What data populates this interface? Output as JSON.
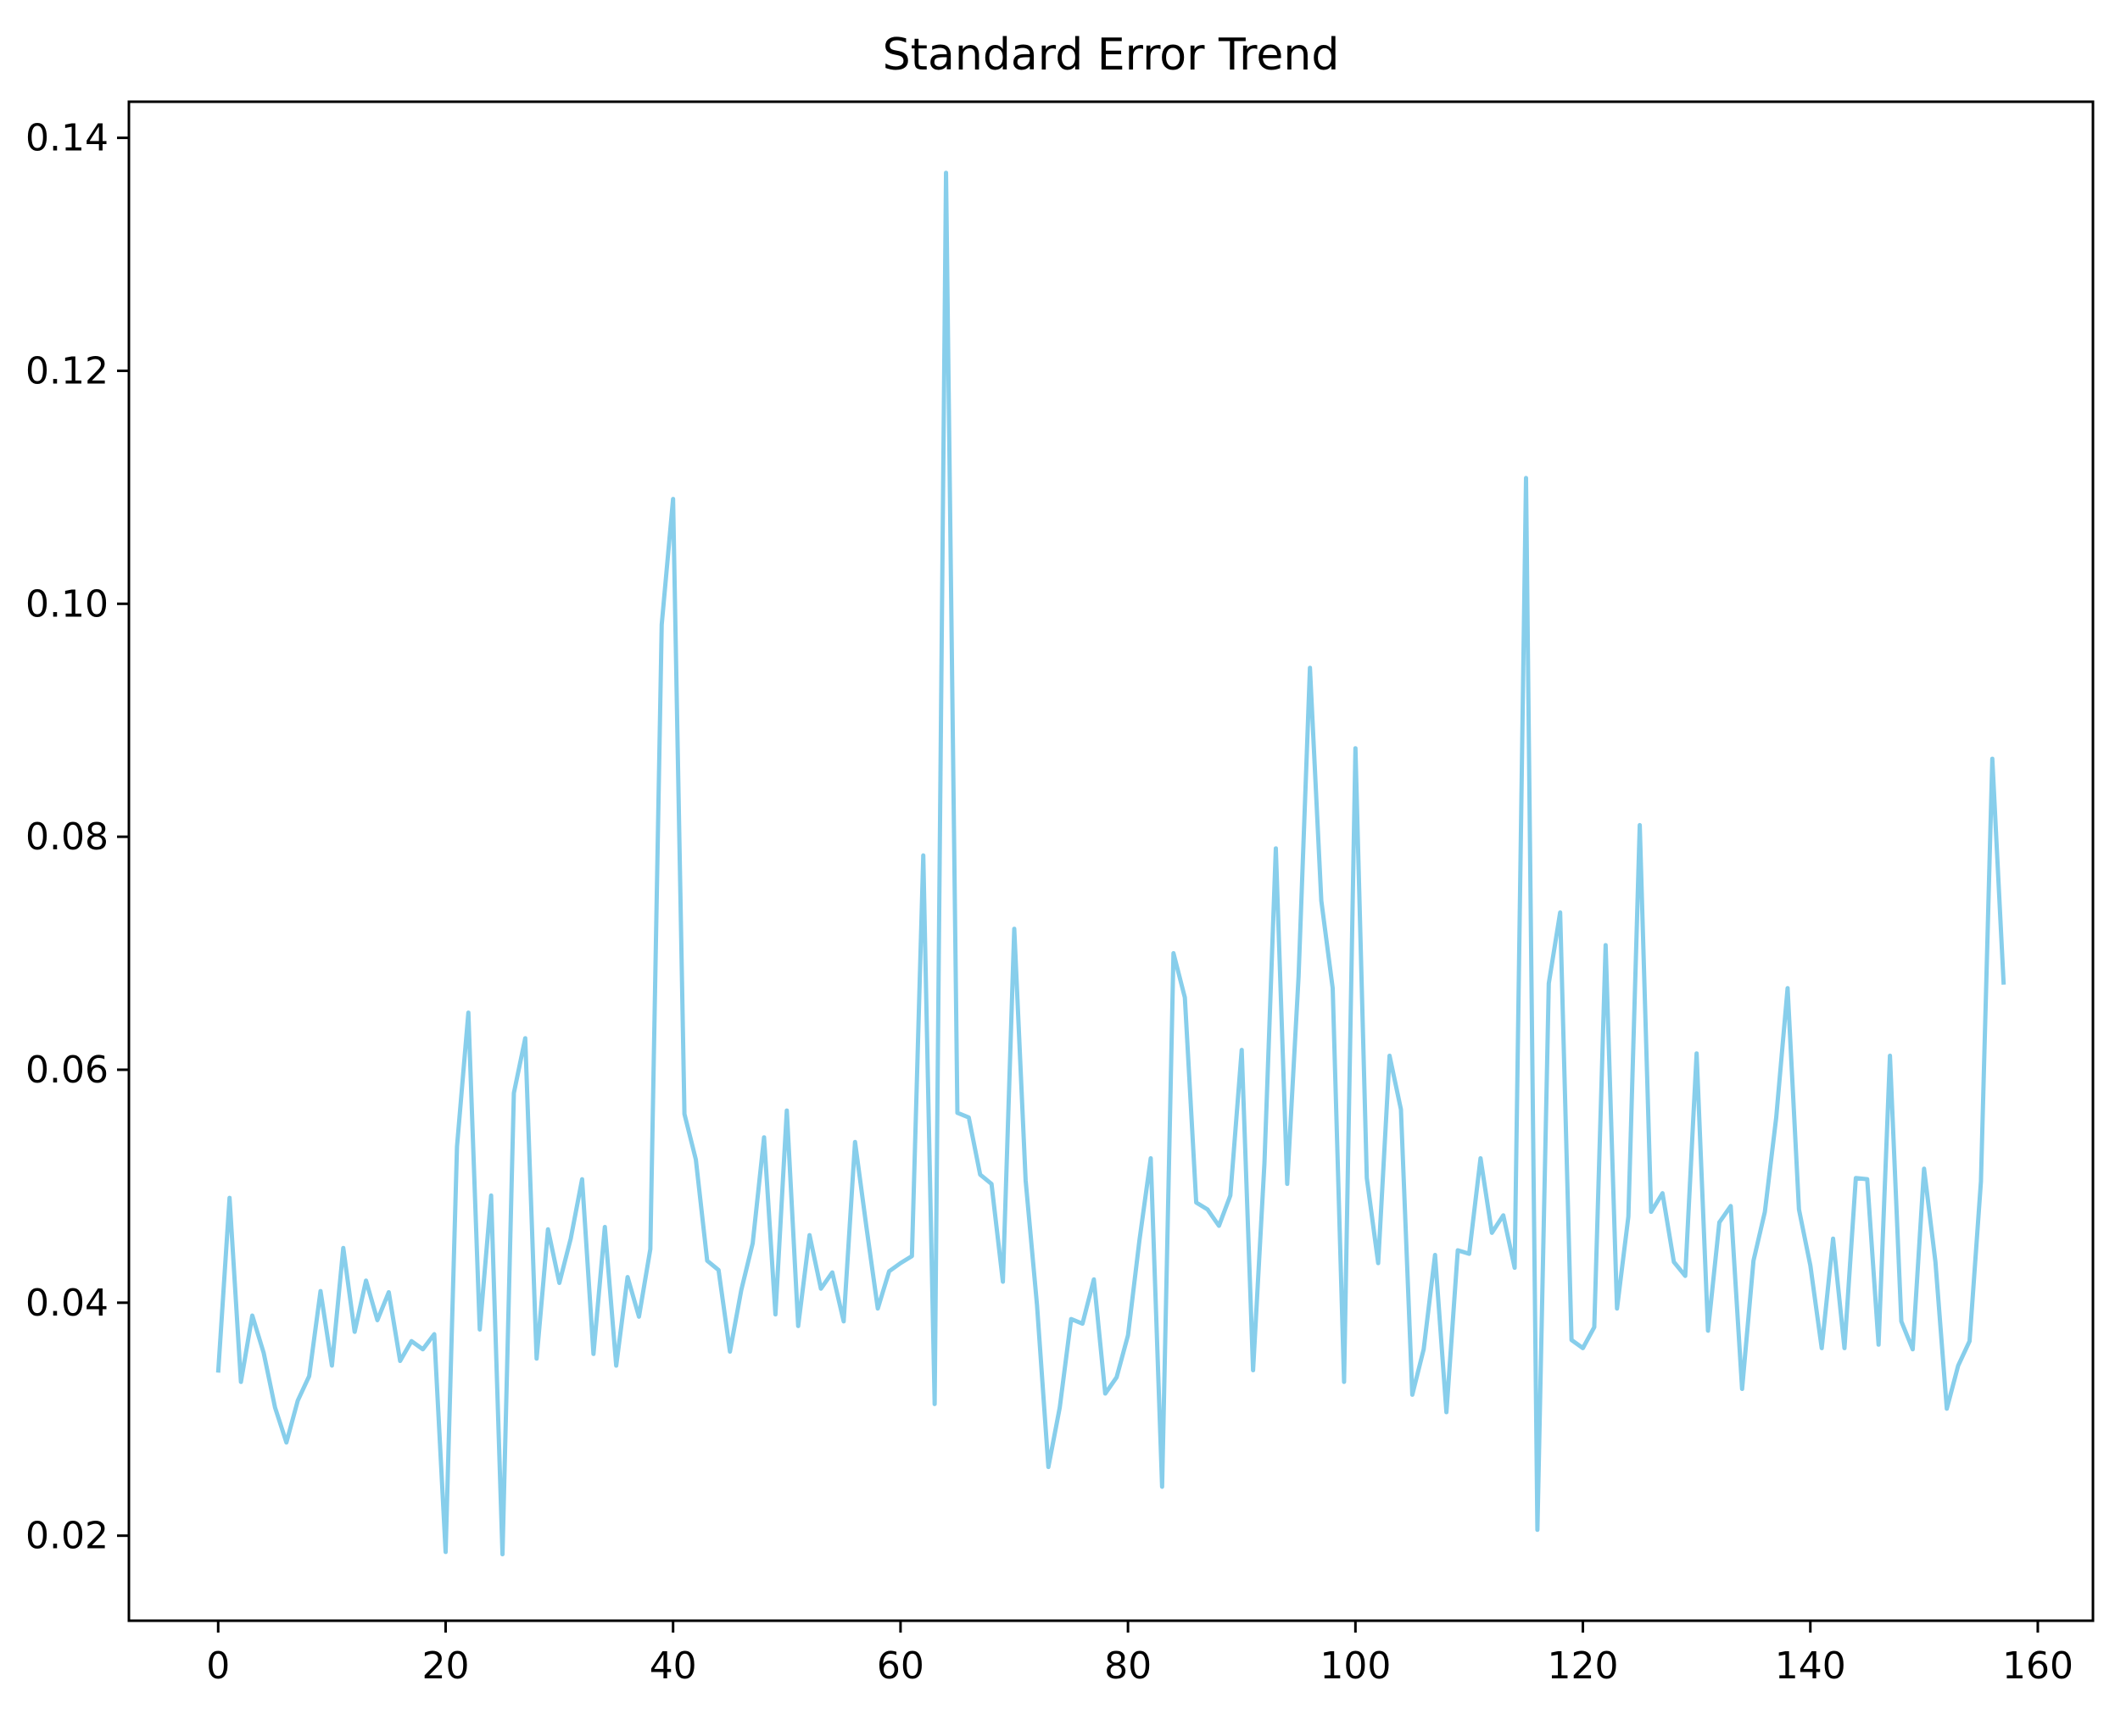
{
  "chart_data": {
    "type": "line",
    "title": "Standard Error Trend",
    "xlabel": "",
    "ylabel": "",
    "xlim": [
      -7.85,
      164.85
    ],
    "ylim": [
      0.0127,
      0.1431
    ],
    "x_ticks": [
      0,
      20,
      40,
      60,
      80,
      100,
      120,
      140,
      160
    ],
    "y_ticks": [
      0.02,
      0.04,
      0.06,
      0.08,
      0.1,
      0.12,
      0.14
    ],
    "y_tick_labels": [
      "0.02",
      "0.04",
      "0.06",
      "0.08",
      "0.10",
      "0.12",
      "0.14"
    ],
    "grid": false,
    "colors": {
      "line": "#87ceeb",
      "axes": "#000000",
      "background": "#ffffff"
    },
    "series": [
      {
        "name": "Standard Error",
        "values": [
          0.034,
          0.049,
          0.0332,
          0.0389,
          0.0357,
          0.031,
          0.028,
          0.0316,
          0.0337,
          0.041,
          0.0346,
          0.0447,
          0.0375,
          0.0419,
          0.0385,
          0.0409,
          0.035,
          0.0367,
          0.036,
          0.0373,
          0.0186,
          0.0534,
          0.0649,
          0.0377,
          0.0492,
          0.0184,
          0.058,
          0.0627,
          0.0352,
          0.0463,
          0.0417,
          0.0455,
          0.0506,
          0.0356,
          0.0465,
          0.0346,
          0.0422,
          0.0388,
          0.0446,
          0.0982,
          0.109,
          0.0562,
          0.0523,
          0.0436,
          0.0428,
          0.0358,
          0.0411,
          0.0451,
          0.0542,
          0.039,
          0.0565,
          0.038,
          0.0458,
          0.0412,
          0.0426,
          0.0384,
          0.0538,
          0.0465,
          0.0395,
          0.0427,
          0.0434,
          0.044,
          0.0784,
          0.0313,
          0.137,
          0.0563,
          0.0559,
          0.051,
          0.0502,
          0.0418,
          0.0721,
          0.0505,
          0.0398,
          0.0259,
          0.031,
          0.0386,
          0.0382,
          0.042,
          0.0322,
          0.0336,
          0.0372,
          0.0453,
          0.0524,
          0.0242,
          0.07,
          0.0662,
          0.0486,
          0.048,
          0.0466,
          0.0492,
          0.0617,
          0.0342,
          0.052,
          0.079,
          0.0502,
          0.068,
          0.0945,
          0.0745,
          0.067,
          0.0332,
          0.0876,
          0.0507,
          0.0434,
          0.0612,
          0.0566,
          0.0321,
          0.036,
          0.0441,
          0.0306,
          0.0445,
          0.0442,
          0.0524,
          0.046,
          0.0475,
          0.043,
          0.1108,
          0.0205,
          0.0674,
          0.0735,
          0.0368,
          0.0361,
          0.0379,
          0.0707,
          0.0395,
          0.0474,
          0.081,
          0.0478,
          0.0494,
          0.0435,
          0.0423,
          0.0614,
          0.0376,
          0.0469,
          0.0483,
          0.0326,
          0.0436,
          0.0478,
          0.0559,
          0.067,
          0.048,
          0.0432,
          0.0361,
          0.0455,
          0.0361,
          0.0507,
          0.0506,
          0.0364,
          0.0612,
          0.0384,
          0.036,
          0.0515,
          0.0435,
          0.0309,
          0.0346,
          0.0367,
          0.0504,
          0.0867,
          0.0673
        ]
      }
    ]
  }
}
